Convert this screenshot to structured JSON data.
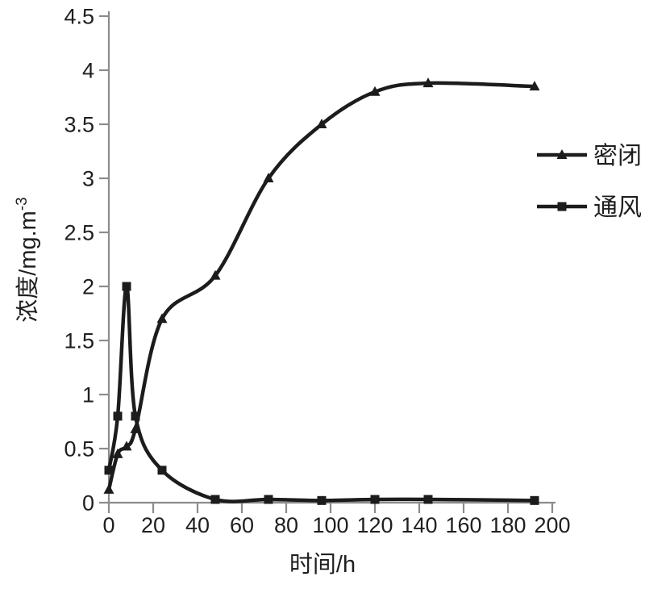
{
  "page": {
    "background": "#ffffff"
  },
  "colors": {
    "line": "#1c1c1c",
    "axis": "#8c8c8c",
    "text": "#1f1f1f",
    "background": "#ffffff"
  },
  "chart_data": {
    "type": "line",
    "title": "",
    "xlabel": "时间/h",
    "ylabel": "浓度/mg.m⁻³",
    "ylabel_base": "浓度/mg.m",
    "ylabel_exponent": "-3",
    "xlim": [
      0,
      200
    ],
    "ylim": [
      0,
      4.5
    ],
    "grid": false,
    "x_tick_values": [
      0,
      20,
      40,
      60,
      80,
      100,
      120,
      140,
      160,
      180,
      200
    ],
    "x_tick_labels": [
      "0",
      "20",
      "40",
      "60",
      "80",
      "100",
      "120",
      "140",
      "160",
      "180",
      "200"
    ],
    "y_tick_values": [
      0,
      0.5,
      1,
      1.5,
      2,
      2.5,
      3,
      3.5,
      4,
      4.5
    ],
    "y_tick_labels": [
      "0",
      "0.5",
      "1",
      "1.5",
      "2",
      "2.5",
      "3",
      "3.5",
      "4",
      "4.5"
    ],
    "x": [
      0,
      4,
      8,
      12,
      24,
      48,
      72,
      96,
      120,
      144,
      192
    ],
    "series": [
      {
        "name": "密闭",
        "marker": "triangle",
        "color": "#1c1c1c",
        "values": [
          0.12,
          0.45,
          0.52,
          0.68,
          1.7,
          2.1,
          3.0,
          3.5,
          3.8,
          3.88,
          3.85
        ]
      },
      {
        "name": "通风",
        "marker": "square",
        "color": "#1c1c1c",
        "values": [
          0.3,
          0.8,
          2.0,
          0.8,
          0.3,
          0.03,
          0.03,
          0.02,
          0.03,
          0.03,
          0.02
        ]
      }
    ],
    "legend": {
      "position": "right",
      "entries": [
        "密闭",
        "通风"
      ]
    }
  }
}
